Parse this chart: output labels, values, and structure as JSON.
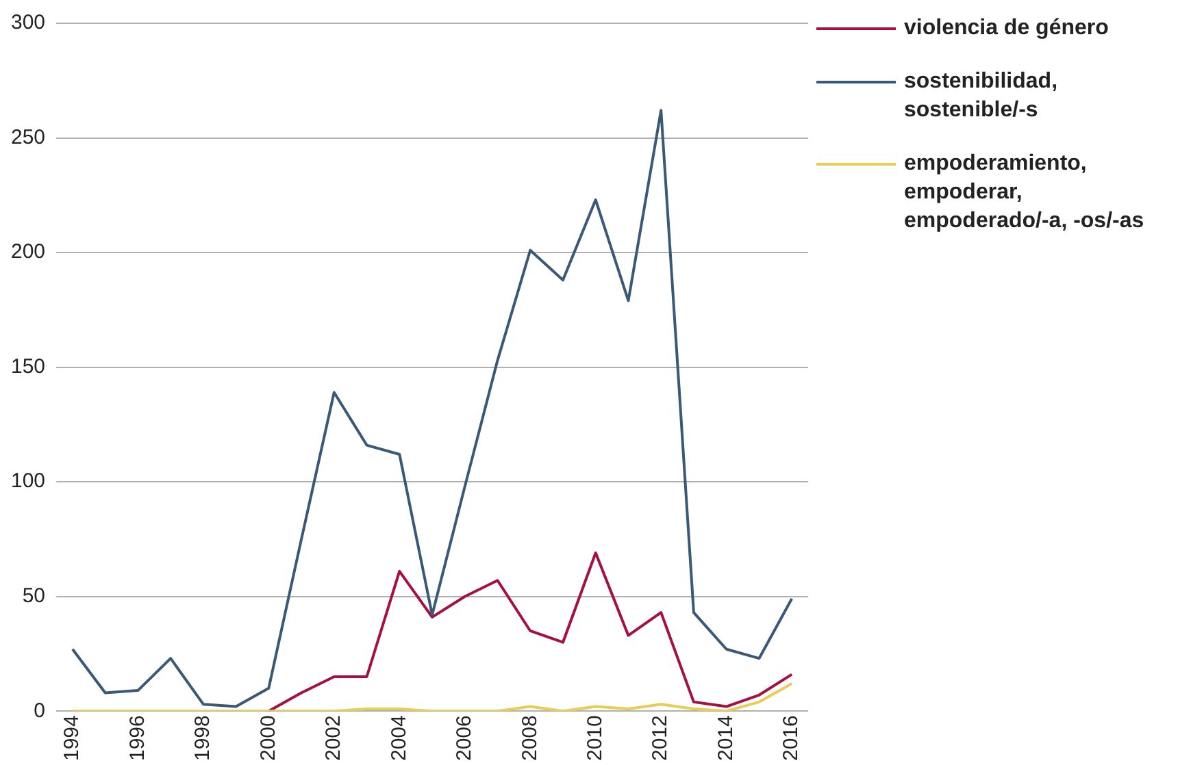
{
  "chart_data": {
    "type": "line",
    "categories": [
      "1994",
      null,
      "1996",
      null,
      "1998",
      null,
      "2000",
      null,
      "2002",
      null,
      "2004",
      null,
      "2006",
      null,
      "2008",
      null,
      "2010",
      null,
      "2012",
      null,
      "2014",
      null,
      "2016"
    ],
    "series": [
      {
        "name": "violencia de género",
        "color": "#a50f42",
        "values": [
          null,
          null,
          null,
          null,
          null,
          null,
          0,
          8,
          15,
          15,
          61,
          41,
          50,
          57,
          35,
          30,
          69,
          33,
          43,
          4,
          2,
          7,
          16
        ]
      },
      {
        "name": "sostenibilidad, sostenible/-s",
        "color": "#3a5878",
        "values": [
          27,
          8,
          9,
          23,
          3,
          2,
          10,
          75,
          139,
          116,
          112,
          42,
          98,
          153,
          201,
          188,
          223,
          179,
          262,
          43,
          27,
          23,
          49
        ]
      },
      {
        "name": "empoderamiento, empoderar, empoderado/-a, -os/-as",
        "color": "#e8cc55",
        "values": [
          0,
          0,
          0,
          0,
          0,
          0,
          0,
          0,
          0,
          1,
          1,
          0,
          0,
          0,
          2,
          0,
          2,
          1,
          3,
          1,
          0,
          4,
          12
        ]
      }
    ],
    "ylim": [
      0,
      300
    ],
    "yticks": [
      0,
      50,
      100,
      150,
      200,
      250,
      300
    ],
    "grid": "y",
    "legend": "right",
    "marker": "none",
    "line_style": "solid"
  }
}
